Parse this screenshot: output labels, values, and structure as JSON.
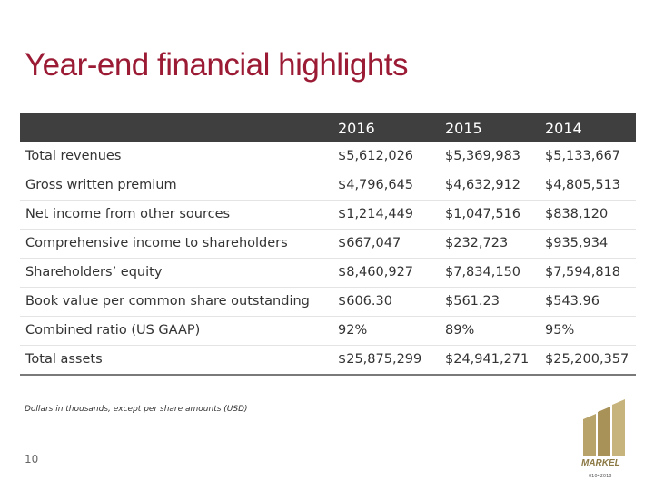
{
  "header": {
    "title": "Year-end financial highlights"
  },
  "table": {
    "columns": [
      "",
      "2016",
      "2015",
      "2014"
    ],
    "rows": [
      [
        "Total revenues",
        "$5,612,026",
        "$5,369,983",
        "$5,133,667"
      ],
      [
        "Gross written premium",
        "$4,796,645",
        "$4,632,912",
        "$4,805,513"
      ],
      [
        "Net income from other sources",
        "$1,214,449",
        "$1,047,516",
        "$838,120"
      ],
      [
        "Comprehensive income to shareholders",
        "$667,047",
        "$232,723",
        "$935,934"
      ],
      [
        "Shareholders’ equity",
        "$8,460,927",
        "$7,834,150",
        "$7,594,818"
      ],
      [
        "Book value per common share outstanding",
        "$606.30",
        "$561.23",
        "$543.96"
      ],
      [
        "Combined ratio (US GAAP)",
        "92%",
        "89%",
        "95%"
      ],
      [
        "Total assets",
        "$25,875,299",
        "$24,941,271",
        "$25,200,357"
      ]
    ]
  },
  "footnote": "Dollars in thousands, except per share amounts (USD)",
  "page_number": "10",
  "logo": {
    "text": "MARKEL",
    "code": "01042018"
  }
}
